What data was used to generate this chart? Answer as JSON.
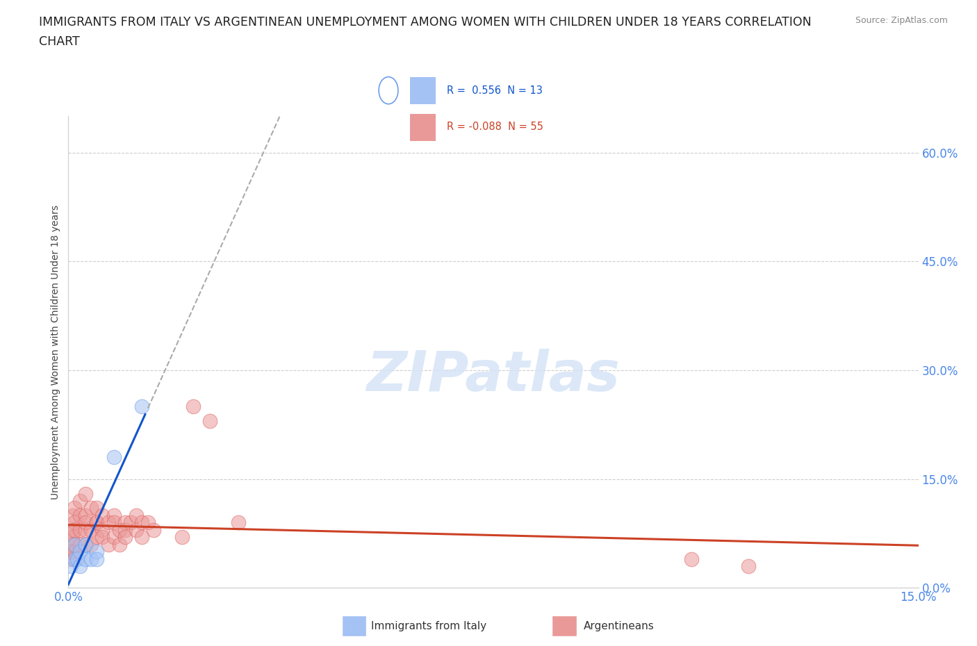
{
  "title_line1": "IMMIGRANTS FROM ITALY VS ARGENTINEAN UNEMPLOYMENT AMONG WOMEN WITH CHILDREN UNDER 18 YEARS CORRELATION",
  "title_line2": "CHART",
  "source_text": "Source: ZipAtlas.com",
  "ylabel": "Unemployment Among Women with Children Under 18 years",
  "xlim": [
    0,
    0.15
  ],
  "ylim": [
    0,
    0.65
  ],
  "yticks": [
    0.0,
    0.15,
    0.3,
    0.45,
    0.6
  ],
  "ytick_labels": [
    "0.0%",
    "15.0%",
    "30.0%",
    "45.0%",
    "60.0%"
  ],
  "xticks": [
    0.0,
    0.15
  ],
  "xtick_labels": [
    "0.0%",
    "15.0%"
  ],
  "blue_color": "#a4c2f4",
  "blue_edge_color": "#6d9eeb",
  "pink_color": "#ea9999",
  "pink_edge_color": "#e06666",
  "blue_line_color": "#1155cc",
  "pink_line_color": "#cc4125",
  "watermark_color": "#d6e4f7",
  "watermark": "ZIPatlas",
  "tick_color": "#4a86e8",
  "grid_color": "#cccccc",
  "italy_x": [
    0.0005,
    0.001,
    0.001,
    0.0015,
    0.002,
    0.002,
    0.003,
    0.003,
    0.004,
    0.005,
    0.005,
    0.008,
    0.013
  ],
  "italy_y": [
    0.03,
    0.04,
    0.06,
    0.04,
    0.05,
    0.03,
    0.06,
    0.04,
    0.04,
    0.05,
    0.04,
    0.18,
    0.25
  ],
  "argentina_x": [
    0.0002,
    0.0003,
    0.0004,
    0.0005,
    0.0006,
    0.0007,
    0.0008,
    0.001,
    0.001,
    0.001,
    0.001,
    0.001,
    0.001,
    0.002,
    0.002,
    0.002,
    0.002,
    0.003,
    0.003,
    0.003,
    0.003,
    0.003,
    0.004,
    0.004,
    0.004,
    0.005,
    0.005,
    0.005,
    0.005,
    0.006,
    0.006,
    0.006,
    0.007,
    0.007,
    0.008,
    0.008,
    0.008,
    0.009,
    0.009,
    0.01,
    0.01,
    0.01,
    0.011,
    0.012,
    0.012,
    0.013,
    0.013,
    0.014,
    0.015,
    0.02,
    0.022,
    0.025,
    0.03,
    0.11,
    0.12
  ],
  "argentina_y": [
    0.05,
    0.04,
    0.06,
    0.08,
    0.05,
    0.07,
    0.1,
    0.09,
    0.11,
    0.06,
    0.04,
    0.08,
    0.05,
    0.12,
    0.08,
    0.1,
    0.06,
    0.1,
    0.13,
    0.08,
    0.06,
    0.09,
    0.11,
    0.08,
    0.06,
    0.09,
    0.11,
    0.07,
    0.09,
    0.1,
    0.08,
    0.07,
    0.09,
    0.06,
    0.1,
    0.09,
    0.07,
    0.08,
    0.06,
    0.09,
    0.08,
    0.07,
    0.09,
    0.1,
    0.08,
    0.09,
    0.07,
    0.09,
    0.08,
    0.07,
    0.25,
    0.23,
    0.09,
    0.04,
    0.03
  ],
  "background_color": "#ffffff"
}
